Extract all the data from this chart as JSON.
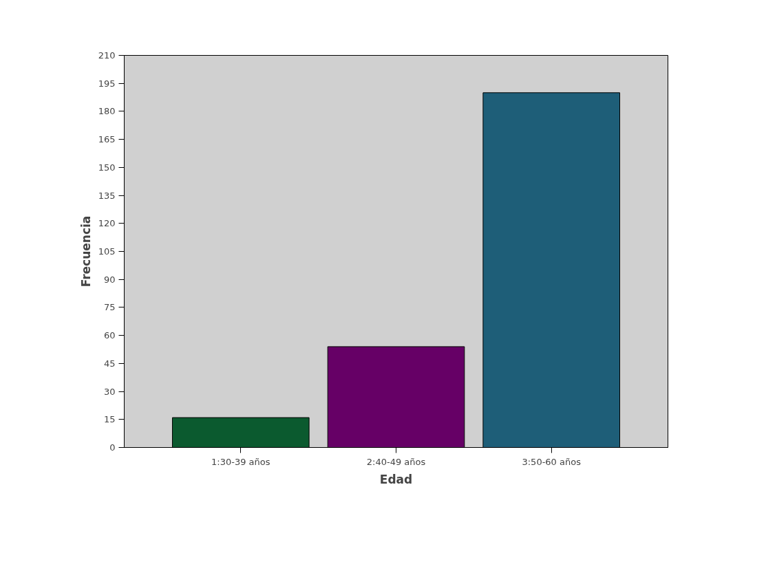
{
  "chart_data": {
    "type": "bar",
    "xlabel": "Edad",
    "ylabel": "Frecuencia",
    "categories": [
      "1:30-39 años",
      "2:40-49 años",
      "3:50-60 años"
    ],
    "values": [
      16,
      54,
      190
    ],
    "colors": [
      "#0b5a2f",
      "#660066",
      "#1e5e78"
    ],
    "ylim": [
      0,
      210
    ],
    "yticks": [
      0,
      15,
      30,
      45,
      60,
      75,
      90,
      105,
      120,
      135,
      150,
      165,
      180,
      195,
      210
    ],
    "grid": false
  }
}
